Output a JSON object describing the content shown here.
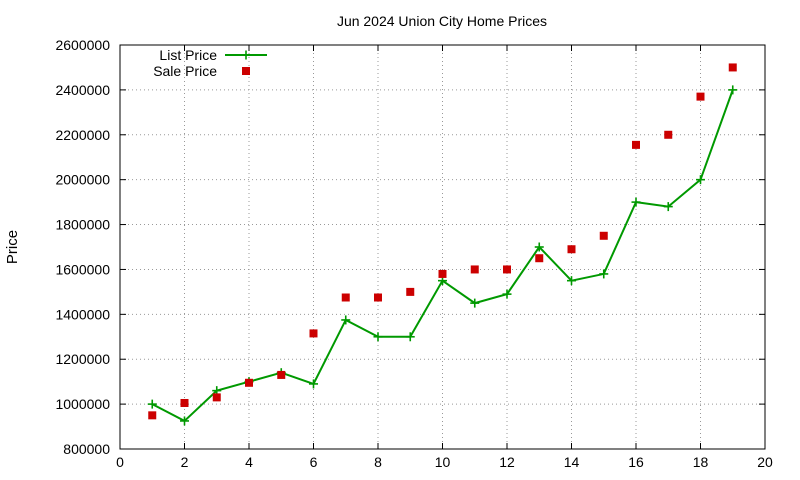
{
  "chart_data": {
    "type": "line",
    "title": "Jun 2024 Union City Home Prices",
    "xlabel": "",
    "ylabel": "Price",
    "xlim": [
      0,
      20
    ],
    "ylim": [
      800000,
      2600000
    ],
    "x_ticks": [
      0,
      2,
      4,
      6,
      8,
      10,
      12,
      14,
      16,
      18,
      20
    ],
    "y_ticks": [
      800000,
      1000000,
      1200000,
      1400000,
      1600000,
      1800000,
      2000000,
      2200000,
      2400000,
      2600000
    ],
    "grid": true,
    "legend_position": "top-left",
    "x": [
      1,
      2,
      3,
      4,
      5,
      6,
      7,
      8,
      9,
      10,
      11,
      12,
      13,
      14,
      15,
      16,
      17,
      18,
      19
    ],
    "series": [
      {
        "name": "List Price",
        "type": "line",
        "marker": "plus",
        "color": "#009900",
        "values": [
          1000000,
          925000,
          1060000,
          1100000,
          1140000,
          1090000,
          1375000,
          1300000,
          1300000,
          1550000,
          1450000,
          1490000,
          1700000,
          1550000,
          1580000,
          1900000,
          1880000,
          2000000,
          2400000
        ]
      },
      {
        "name": "Sale Price",
        "type": "scatter",
        "marker": "square",
        "color": "#cc0000",
        "values": [
          950000,
          1005000,
          1030000,
          1095000,
          1130000,
          1315000,
          1475000,
          1475000,
          1500000,
          1580000,
          1600000,
          1600000,
          1650000,
          1690000,
          1750000,
          2155000,
          2200000,
          2370000,
          2500000
        ]
      }
    ]
  }
}
